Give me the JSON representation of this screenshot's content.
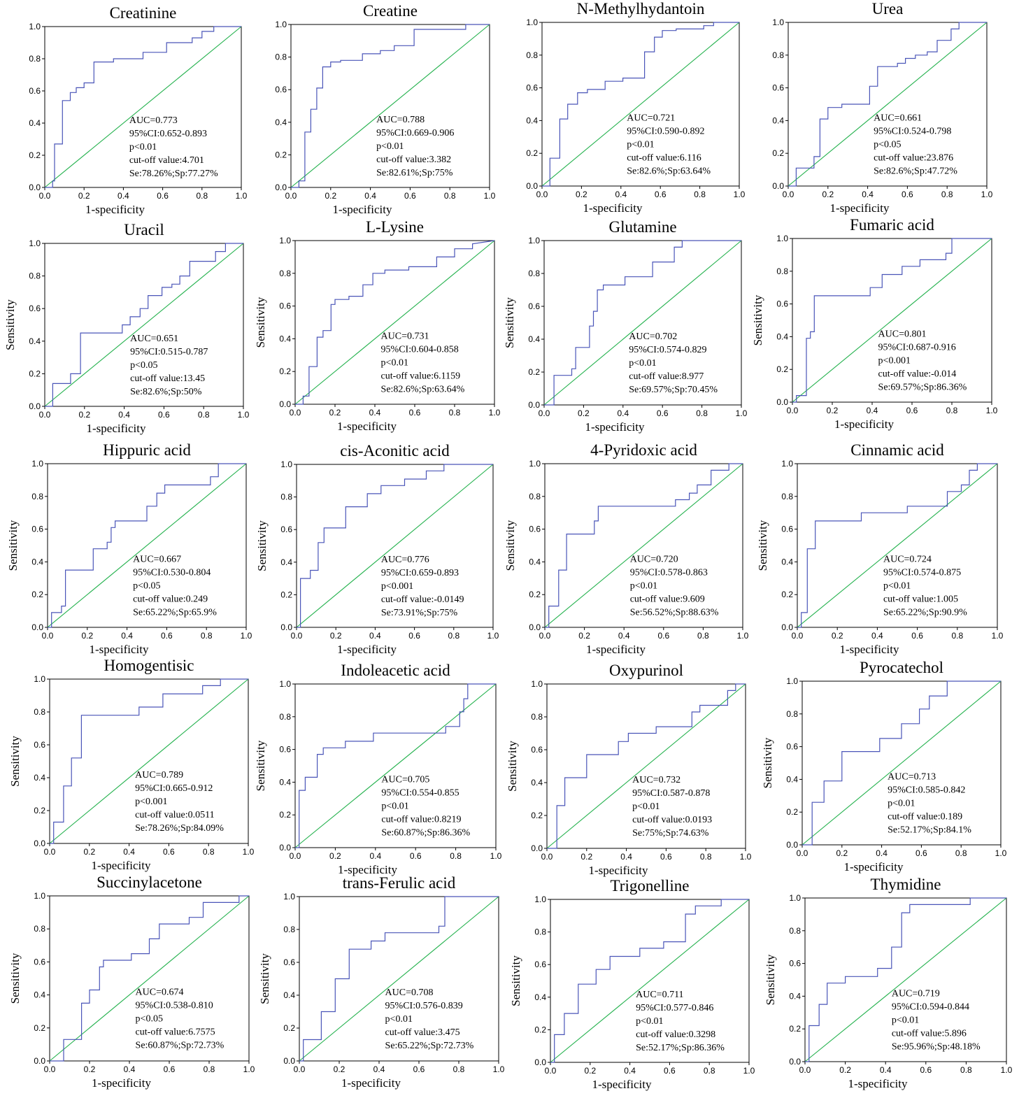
{
  "axis_labels": {
    "x": "1-specificity",
    "y": "Sensitivity"
  },
  "ticks": [
    "0.0",
    "0.2",
    "0.4",
    "0.6",
    "0.8",
    "1.0"
  ],
  "colors": {
    "roc_curve": "#4a55b8",
    "reference_line": "#22b14c"
  },
  "chart_data": [
    {
      "type": "line",
      "title": "Creatinine",
      "show_ylabel": false,
      "annotation": [
        "AUC=0.773",
        "95%CI:0.652-0.893",
        "p<0.01",
        "cut-off value:4.701",
        "Se:78.26%;Sp:77.27%"
      ],
      "x": [
        0,
        0.04,
        0.04,
        0.05,
        0.05,
        0.09,
        0.09,
        0.13,
        0.13,
        0.16,
        0.16,
        0.2,
        0.2,
        0.25,
        0.25,
        0.35,
        0.35,
        0.5,
        0.5,
        0.62,
        0.62,
        0.75,
        0.75,
        0.8,
        0.8,
        0.86,
        0.86,
        1
      ],
      "y": [
        0,
        0,
        0.04,
        0.04,
        0.27,
        0.27,
        0.54,
        0.54,
        0.59,
        0.59,
        0.62,
        0.62,
        0.65,
        0.65,
        0.78,
        0.78,
        0.8,
        0.8,
        0.84,
        0.84,
        0.9,
        0.9,
        0.93,
        0.93,
        0.97,
        0.97,
        1,
        1
      ]
    },
    {
      "type": "line",
      "title": "Creatine",
      "show_ylabel": false,
      "annotation": [
        "AUC=0.788",
        "95%CI:0.669-0.906",
        "p<0.01",
        "cut-off value:3.382",
        "Se:82.61%;Sp:75%"
      ],
      "x": [
        0,
        0.04,
        0.04,
        0.07,
        0.07,
        0.1,
        0.1,
        0.13,
        0.13,
        0.16,
        0.16,
        0.2,
        0.2,
        0.25,
        0.25,
        0.36,
        0.36,
        0.45,
        0.45,
        0.52,
        0.52,
        0.62,
        0.62,
        0.88,
        0.88,
        1
      ],
      "y": [
        0,
        0,
        0.04,
        0.04,
        0.34,
        0.34,
        0.48,
        0.48,
        0.61,
        0.61,
        0.74,
        0.74,
        0.77,
        0.77,
        0.78,
        0.78,
        0.82,
        0.82,
        0.84,
        0.84,
        0.87,
        0.87,
        0.97,
        0.97,
        1,
        1
      ]
    },
    {
      "type": "line",
      "title": "N-Methylhydantoin",
      "show_ylabel": false,
      "annotation": [
        "AUC=0.721",
        "95%CI:0.590-0.892",
        "p<0.01",
        "cut-off value:6.116",
        "Se:82.6%;Sp:63.64%"
      ],
      "x": [
        0,
        0.04,
        0.04,
        0.09,
        0.09,
        0.13,
        0.13,
        0.18,
        0.18,
        0.23,
        0.23,
        0.32,
        0.32,
        0.41,
        0.41,
        0.52,
        0.52,
        0.57,
        0.57,
        0.61,
        0.61,
        0.68,
        0.68,
        0.82,
        0.82,
        0.87,
        0.87,
        1
      ],
      "y": [
        0,
        0,
        0.17,
        0.17,
        0.41,
        0.41,
        0.5,
        0.5,
        0.57,
        0.57,
        0.59,
        0.59,
        0.64,
        0.64,
        0.66,
        0.66,
        0.82,
        0.82,
        0.91,
        0.91,
        0.95,
        0.95,
        0.96,
        0.96,
        0.98,
        0.98,
        1,
        1
      ]
    },
    {
      "type": "line",
      "title": "Urea",
      "show_ylabel": false,
      "annotation": [
        "AUC=0.661",
        "95%CI:0.524-0.798",
        "p<0.05",
        "cut-off value:23.876",
        "Se:82.6%;Sp:47.72%"
      ],
      "x": [
        0,
        0.04,
        0.04,
        0.13,
        0.13,
        0.16,
        0.16,
        0.2,
        0.2,
        0.27,
        0.27,
        0.41,
        0.41,
        0.45,
        0.45,
        0.55,
        0.55,
        0.59,
        0.59,
        0.64,
        0.64,
        0.7,
        0.7,
        0.75,
        0.75,
        0.82,
        0.82,
        0.86,
        0.86,
        1
      ],
      "y": [
        0,
        0,
        0.11,
        0.11,
        0.18,
        0.18,
        0.41,
        0.41,
        0.48,
        0.48,
        0.5,
        0.5,
        0.61,
        0.61,
        0.73,
        0.73,
        0.75,
        0.75,
        0.78,
        0.78,
        0.8,
        0.8,
        0.82,
        0.82,
        0.89,
        0.89,
        0.96,
        0.96,
        1,
        1
      ]
    },
    {
      "type": "line",
      "title": "Uracil",
      "show_ylabel": true,
      "annotation": [
        "AUC=0.651",
        "95%CI:0.515-0.787",
        "p<0.05",
        "cut-off value:13.45",
        "Se:82.6%;Sp:50%"
      ],
      "x": [
        0,
        0.04,
        0.04,
        0.13,
        0.13,
        0.18,
        0.18,
        0.39,
        0.39,
        0.43,
        0.43,
        0.48,
        0.48,
        0.52,
        0.52,
        0.59,
        0.59,
        0.64,
        0.64,
        0.68,
        0.68,
        0.73,
        0.73,
        0.86,
        0.86,
        0.91,
        0.91,
        1
      ],
      "y": [
        0,
        0,
        0.14,
        0.14,
        0.2,
        0.2,
        0.45,
        0.45,
        0.5,
        0.5,
        0.55,
        0.55,
        0.6,
        0.6,
        0.68,
        0.68,
        0.73,
        0.73,
        0.75,
        0.75,
        0.8,
        0.8,
        0.89,
        0.89,
        0.95,
        0.95,
        1,
        1
      ]
    },
    {
      "type": "line",
      "title": "L-Lysine",
      "show_ylabel": true,
      "annotation": [
        "AUC=0.731",
        "95%CI:0.604-0.858",
        "p<0.01",
        "cut-off value:6.1159",
        "Se:82.6%;Sp:63.64%"
      ],
      "x": [
        0,
        0.04,
        0.04,
        0.07,
        0.07,
        0.11,
        0.11,
        0.14,
        0.14,
        0.18,
        0.18,
        0.2,
        0.2,
        0.27,
        0.27,
        0.34,
        0.34,
        0.39,
        0.39,
        0.45,
        0.45,
        0.57,
        0.57,
        0.71,
        0.71,
        0.8,
        0.8,
        0.89,
        0.89,
        1
      ],
      "y": [
        0,
        0,
        0.05,
        0.05,
        0.23,
        0.23,
        0.41,
        0.41,
        0.45,
        0.45,
        0.61,
        0.61,
        0.64,
        0.64,
        0.66,
        0.66,
        0.73,
        0.73,
        0.8,
        0.8,
        0.82,
        0.82,
        0.84,
        0.84,
        0.9,
        0.9,
        0.95,
        0.95,
        0.98,
        1
      ]
    },
    {
      "type": "line",
      "title": "Glutamine",
      "show_ylabel": true,
      "annotation": [
        "AUC=0.702",
        "95%CI:0.574-0.829",
        "p<0.01",
        "cut-off value:8.977",
        "Se:69.57%;Sp:70.45%"
      ],
      "x": [
        0,
        0.05,
        0.05,
        0.14,
        0.14,
        0.16,
        0.16,
        0.23,
        0.23,
        0.25,
        0.25,
        0.27,
        0.27,
        0.3,
        0.3,
        0.41,
        0.41,
        0.55,
        0.55,
        0.66,
        0.66,
        0.7,
        0.7,
        1
      ],
      "y": [
        0,
        0,
        0.18,
        0.18,
        0.22,
        0.22,
        0.35,
        0.35,
        0.48,
        0.48,
        0.57,
        0.57,
        0.7,
        0.7,
        0.73,
        0.73,
        0.78,
        0.78,
        0.87,
        0.87,
        0.96,
        0.96,
        1,
        1
      ]
    },
    {
      "type": "line",
      "title": "Fumaric acid",
      "show_ylabel": true,
      "annotation": [
        "AUC=0.801",
        "95%CI:0.687-0.916",
        "p<0.001",
        "cut-off value:-0.014",
        "Se:69.57%;Sp:86.36%"
      ],
      "x": [
        0,
        0.02,
        0.02,
        0.07,
        0.07,
        0.09,
        0.09,
        0.11,
        0.11,
        0.39,
        0.39,
        0.45,
        0.45,
        0.55,
        0.55,
        0.64,
        0.64,
        0.77,
        0.77,
        0.8,
        0.8,
        1
      ],
      "y": [
        0,
        0,
        0.04,
        0.04,
        0.39,
        0.39,
        0.43,
        0.43,
        0.65,
        0.65,
        0.7,
        0.7,
        0.78,
        0.78,
        0.83,
        0.83,
        0.87,
        0.87,
        0.91,
        0.91,
        1,
        1
      ]
    },
    {
      "type": "line",
      "title": "Hippuric acid",
      "show_ylabel": true,
      "annotation": [
        "AUC=0.667",
        "95%CI:0.530-0.804",
        "p<0.05",
        "cut-off value:0.249",
        "Se:65.22%;Sp:65.9%"
      ],
      "x": [
        0,
        0.02,
        0.02,
        0.07,
        0.07,
        0.09,
        0.09,
        0.23,
        0.23,
        0.3,
        0.3,
        0.32,
        0.32,
        0.34,
        0.34,
        0.5,
        0.5,
        0.55,
        0.55,
        0.59,
        0.59,
        0.82,
        0.82,
        0.86,
        0.86,
        1
      ],
      "y": [
        0,
        0,
        0.09,
        0.09,
        0.13,
        0.13,
        0.35,
        0.35,
        0.48,
        0.48,
        0.52,
        0.52,
        0.61,
        0.61,
        0.65,
        0.65,
        0.74,
        0.74,
        0.82,
        0.82,
        0.87,
        0.87,
        0.92,
        0.92,
        1,
        1
      ]
    },
    {
      "type": "line",
      "title": "cis-Aconitic acid",
      "show_ylabel": true,
      "annotation": [
        "AUC=0.776",
        "95%CI:0.659-0.893",
        "p<0.001",
        "cut-off value:-0.0149",
        "Se:73.91%;Sp:75%"
      ],
      "x": [
        0,
        0.02,
        0.02,
        0.07,
        0.07,
        0.11,
        0.11,
        0.14,
        0.14,
        0.25,
        0.25,
        0.36,
        0.36,
        0.43,
        0.43,
        0.55,
        0.55,
        0.66,
        0.66,
        0.75,
        0.75,
        1
      ],
      "y": [
        0,
        0,
        0.3,
        0.3,
        0.35,
        0.35,
        0.52,
        0.52,
        0.61,
        0.61,
        0.74,
        0.74,
        0.82,
        0.82,
        0.87,
        0.87,
        0.91,
        0.91,
        0.96,
        0.96,
        1,
        1
      ]
    },
    {
      "type": "line",
      "title": "4-Pyridoxic acid",
      "show_ylabel": true,
      "annotation": [
        "AUC=0.720",
        "95%CI:0.578-0.863",
        "p<0.01",
        "cut-off value:9.609",
        "Se:56.52%;Sp:88.63%"
      ],
      "x": [
        0,
        0.02,
        0.02,
        0.07,
        0.07,
        0.11,
        0.11,
        0.25,
        0.25,
        0.27,
        0.27,
        0.66,
        0.66,
        0.73,
        0.73,
        0.77,
        0.77,
        0.84,
        0.84,
        0.93,
        0.93,
        1
      ],
      "y": [
        0,
        0,
        0.13,
        0.13,
        0.35,
        0.35,
        0.57,
        0.57,
        0.65,
        0.65,
        0.74,
        0.74,
        0.78,
        0.78,
        0.82,
        0.82,
        0.87,
        0.87,
        0.96,
        0.96,
        1,
        1
      ]
    },
    {
      "type": "line",
      "title": "Cinnamic acid",
      "show_ylabel": true,
      "annotation": [
        "AUC=0.724",
        "95%CI:0.574-0.875",
        "p<0.01",
        "cut-off value:1.005",
        "Se:65.22%;Sp:90.9%"
      ],
      "x": [
        0,
        0.02,
        0.02,
        0.05,
        0.05,
        0.09,
        0.09,
        0.32,
        0.32,
        0.55,
        0.55,
        0.75,
        0.75,
        0.82,
        0.82,
        0.86,
        0.86,
        0.9,
        0.9,
        1
      ],
      "y": [
        0,
        0,
        0.09,
        0.09,
        0.48,
        0.48,
        0.65,
        0.65,
        0.7,
        0.7,
        0.74,
        0.74,
        0.83,
        0.83,
        0.87,
        0.87,
        0.96,
        0.96,
        1,
        1
      ]
    },
    {
      "type": "line",
      "title": "Homogentisic",
      "show_ylabel": true,
      "annotation": [
        "AUC=0.789",
        "95%CI:0.665-0.912",
        "p<0.001",
        "cut-off value:0.0511",
        "Se:78.26%;Sp:84.09%"
      ],
      "x": [
        0,
        0.02,
        0.02,
        0.07,
        0.07,
        0.11,
        0.11,
        0.16,
        0.16,
        0.45,
        0.45,
        0.57,
        0.57,
        0.77,
        0.77,
        0.86,
        0.86,
        1
      ],
      "y": [
        0,
        0,
        0.13,
        0.13,
        0.35,
        0.35,
        0.52,
        0.52,
        0.78,
        0.78,
        0.83,
        0.83,
        0.91,
        0.91,
        0.96,
        0.96,
        1,
        1
      ]
    },
    {
      "type": "line",
      "title": "Indoleacetic acid",
      "show_ylabel": true,
      "annotation": [
        "AUC=0.705",
        "95%CI:0.554-0.855",
        "p<0.01",
        "cut-off value:0.8219",
        "Se:60.87%;Sp:86.36%"
      ],
      "x": [
        0,
        0.02,
        0.02,
        0.05,
        0.05,
        0.11,
        0.11,
        0.14,
        0.14,
        0.25,
        0.25,
        0.39,
        0.39,
        0.75,
        0.75,
        0.82,
        0.82,
        0.84,
        0.84,
        0.86,
        0.86,
        1
      ],
      "y": [
        0,
        0,
        0.35,
        0.35,
        0.43,
        0.43,
        0.57,
        0.57,
        0.61,
        0.61,
        0.65,
        0.65,
        0.7,
        0.7,
        0.74,
        0.74,
        0.83,
        0.83,
        0.91,
        0.91,
        1,
        1
      ]
    },
    {
      "type": "line",
      "title": "Oxypurinol",
      "show_ylabel": true,
      "annotation": [
        "AUC=0.732",
        "95%CI:0.587-0.878",
        "p<0.01",
        "cut-off value:0.0193",
        "Se:75%;Sp:74.63%"
      ],
      "x": [
        0,
        0.05,
        0.05,
        0.09,
        0.09,
        0.2,
        0.2,
        0.36,
        0.36,
        0.41,
        0.41,
        0.55,
        0.55,
        0.73,
        0.73,
        0.77,
        0.77,
        0.91,
        0.91,
        0.95,
        0.95,
        1
      ],
      "y": [
        0,
        0,
        0.26,
        0.26,
        0.43,
        0.43,
        0.57,
        0.57,
        0.65,
        0.65,
        0.7,
        0.7,
        0.74,
        0.74,
        0.83,
        0.83,
        0.87,
        0.87,
        0.96,
        0.96,
        1,
        1
      ]
    },
    {
      "type": "line",
      "title": "Pyrocatechol",
      "show_ylabel": true,
      "annotation": [
        "AUC=0.713",
        "95%CI:0.585-0.842",
        "p<0.01",
        "cut-off value:0.189",
        "Se:52.17%;Sp:84.1%"
      ],
      "x": [
        0,
        0.05,
        0.05,
        0.11,
        0.11,
        0.2,
        0.2,
        0.39,
        0.39,
        0.5,
        0.5,
        0.59,
        0.59,
        0.64,
        0.64,
        0.73,
        0.73,
        1
      ],
      "y": [
        0,
        0,
        0.26,
        0.26,
        0.39,
        0.39,
        0.57,
        0.57,
        0.65,
        0.65,
        0.74,
        0.74,
        0.83,
        0.83,
        0.91,
        0.91,
        1,
        1
      ]
    },
    {
      "type": "line",
      "title": "Succinylacetone",
      "show_ylabel": true,
      "annotation": [
        "AUC=0.674",
        "95%CI:0.538-0.810",
        "p<0.05",
        "cut-off value:6.7575",
        "Se:60.87%;Sp:72.73%"
      ],
      "x": [
        0,
        0.07,
        0.07,
        0.16,
        0.16,
        0.2,
        0.2,
        0.25,
        0.25,
        0.27,
        0.27,
        0.41,
        0.41,
        0.5,
        0.5,
        0.55,
        0.55,
        0.7,
        0.7,
        0.77,
        0.77,
        0.95,
        0.95,
        1
      ],
      "y": [
        0,
        0,
        0.13,
        0.13,
        0.35,
        0.35,
        0.43,
        0.43,
        0.57,
        0.57,
        0.61,
        0.61,
        0.65,
        0.65,
        0.74,
        0.74,
        0.83,
        0.83,
        0.87,
        0.87,
        0.96,
        0.96,
        1,
        1
      ]
    },
    {
      "type": "line",
      "title": "trans-Ferulic acid",
      "show_ylabel": true,
      "annotation": [
        "AUC=0.708",
        "95%CI:0.576-0.839",
        "p<0.01",
        "cut-off value:3.475",
        "Se:65.22%;Sp:72.73%"
      ],
      "x": [
        0,
        0.02,
        0.02,
        0.11,
        0.11,
        0.18,
        0.18,
        0.25,
        0.25,
        0.36,
        0.36,
        0.43,
        0.43,
        0.7,
        0.7,
        0.73,
        0.73,
        1
      ],
      "y": [
        0,
        0,
        0.13,
        0.13,
        0.3,
        0.3,
        0.5,
        0.5,
        0.68,
        0.68,
        0.73,
        0.73,
        0.78,
        0.78,
        0.82,
        0.82,
        1,
        1
      ]
    },
    {
      "type": "line",
      "title": "Trigonelline",
      "show_ylabel": true,
      "annotation": [
        "AUC=0.711",
        "95%CI:0.577-0.846",
        "p<0.01",
        "cut-off value:0.3298",
        "Se:52.17%;Sp:86.36%"
      ],
      "x": [
        0,
        0.02,
        0.02,
        0.07,
        0.07,
        0.14,
        0.14,
        0.23,
        0.23,
        0.3,
        0.3,
        0.45,
        0.45,
        0.57,
        0.57,
        0.68,
        0.68,
        0.73,
        0.73,
        0.86,
        0.86,
        1
      ],
      "y": [
        0,
        0,
        0.17,
        0.17,
        0.3,
        0.3,
        0.48,
        0.48,
        0.57,
        0.57,
        0.65,
        0.65,
        0.7,
        0.7,
        0.74,
        0.74,
        0.91,
        0.91,
        0.96,
        0.96,
        1,
        1
      ]
    },
    {
      "type": "line",
      "title": "Thymidine",
      "show_ylabel": true,
      "annotation": [
        "AUC=0.719",
        "95%CI:0.594-0.844",
        "p<0.01",
        "cut-off value:5.896",
        "Se:95.96%;Sp:48.18%"
      ],
      "x": [
        0,
        0.02,
        0.02,
        0.07,
        0.07,
        0.11,
        0.11,
        0.2,
        0.2,
        0.36,
        0.36,
        0.43,
        0.43,
        0.48,
        0.48,
        0.52,
        0.52,
        0.82,
        0.82,
        1
      ],
      "y": [
        0,
        0,
        0.22,
        0.22,
        0.35,
        0.35,
        0.48,
        0.48,
        0.52,
        0.52,
        0.57,
        0.57,
        0.7,
        0.7,
        0.91,
        0.91,
        0.96,
        0.96,
        1,
        1
      ]
    }
  ]
}
